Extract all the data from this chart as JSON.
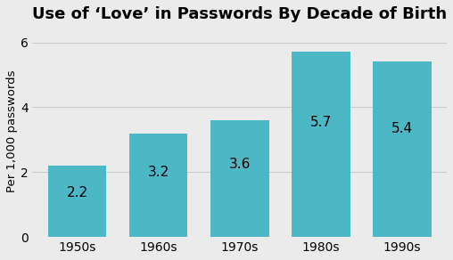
{
  "title": "Use of ‘Love’ in Passwords By Decade of Birth",
  "categories": [
    "1950s",
    "1960s",
    "1970s",
    "1980s",
    "1990s"
  ],
  "values": [
    2.2,
    3.2,
    3.6,
    5.7,
    5.4
  ],
  "bar_color": "#4db8c5",
  "ylabel": "Per 1,000 passwords",
  "ylim": [
    0,
    6.5
  ],
  "yticks": [
    0,
    2,
    4,
    6
  ],
  "background_color": "#ebebeb",
  "title_fontsize": 13,
  "label_fontsize": 9.5,
  "tick_fontsize": 10,
  "bar_label_fontsize": 11
}
